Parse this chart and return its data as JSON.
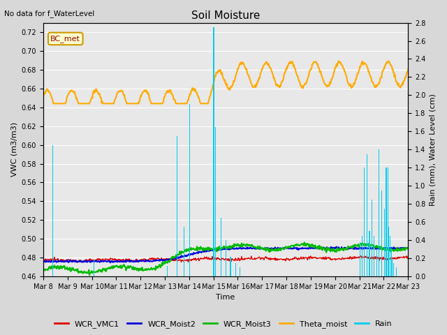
{
  "title": "Soil Moisture",
  "top_left_text": "No data for f_WaterLevel",
  "annotation_text": "BC_met",
  "xlabel": "Time",
  "ylabel_left": "VWC (m3/m3)",
  "ylabel_right": "Rain (mm), Water Level (cm)",
  "ylim_left": [
    0.46,
    0.73
  ],
  "ylim_right": [
    0.0,
    2.8
  ],
  "yticks_left": [
    0.46,
    0.48,
    0.5,
    0.52,
    0.54,
    0.56,
    0.58,
    0.6,
    0.62,
    0.64,
    0.66,
    0.68,
    0.7,
    0.72
  ],
  "yticks_right": [
    0.0,
    0.2,
    0.4,
    0.6,
    0.8,
    1.0,
    1.2,
    1.4,
    1.6,
    1.8,
    2.0,
    2.2,
    2.4,
    2.6,
    2.8
  ],
  "colors": {
    "WCR_VMC1": "#dd0000",
    "WCR_Moist2": "#0000dd",
    "WCR_Moist3": "#00bb00",
    "Theta_moist": "#ffaa00",
    "Rain": "#00ccee",
    "background": "#e8e8e8",
    "fig_bg": "#d8d8d8",
    "grid": "#ffffff"
  },
  "figsize": [
    6.4,
    4.8
  ],
  "dpi": 100
}
